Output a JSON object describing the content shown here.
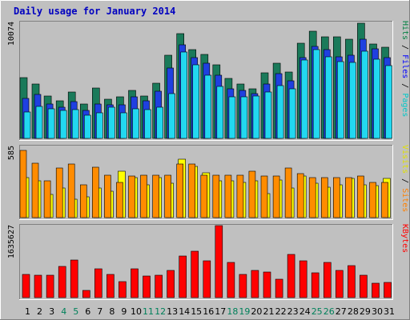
{
  "chart_data": {
    "type": "bar",
    "title": "Daily usage for January 2014",
    "categories": [
      "1",
      "2",
      "3",
      "4",
      "5",
      "6",
      "7",
      "8",
      "9",
      "10",
      "11",
      "12",
      "13",
      "14",
      "15",
      "16",
      "17",
      "18",
      "19",
      "20",
      "21",
      "22",
      "23",
      "24",
      "25",
      "26",
      "27",
      "28",
      "29",
      "30",
      "31"
    ],
    "weekend_days": [
      "4",
      "5",
      "11",
      "12",
      "18",
      "19",
      "25",
      "26"
    ],
    "panels": [
      {
        "id": "pages-files-hits",
        "y_max": 10074,
        "y_max_label": "10074",
        "ylabel_parts": [
          {
            "text": "Pages",
            "color": "#00c8c8"
          },
          {
            "text": " / ",
            "color": "#000000"
          },
          {
            "text": "Files",
            "color": "#0000ff"
          },
          {
            "text": " / ",
            "color": "#000000"
          },
          {
            "text": "Hits",
            "color": "#008040"
          }
        ],
        "series": [
          {
            "name": "Hits",
            "color": "#1a7a5a",
            "values": [
              5300,
              4700,
              3700,
              3300,
              4000,
              3000,
              4400,
              3400,
              3600,
              4200,
              3700,
              4800,
              7200,
              9100,
              7700,
              7300,
              6400,
              5200,
              4700,
              4300,
              5700,
              6500,
              5800,
              8300,
              9300,
              8800,
              8800,
              8600,
              10000,
              8200,
              7900
            ]
          },
          {
            "name": "Files",
            "color": "#1f40e0",
            "values": [
              3500,
              3800,
              3000,
              2700,
              3200,
              2400,
              3000,
              2900,
              2900,
              3600,
              3300,
              4100,
              6100,
              8100,
              7000,
              6500,
              5500,
              4300,
              4200,
              3900,
              4700,
              5600,
              5000,
              7000,
              8000,
              7700,
              7100,
              7200,
              8600,
              7800,
              7000
            ]
          },
          {
            "name": "Pages",
            "color": "#22d8f0",
            "values": [
              2300,
              2800,
              2600,
              2400,
              2500,
              2000,
              2200,
              2700,
              2200,
              2600,
              2500,
              2700,
              3900,
              7500,
              6400,
              5500,
              4500,
              3600,
              3600,
              3700,
              4000,
              4600,
              4300,
              6800,
              7700,
              7100,
              6700,
              6600,
              7600,
              6900,
              6300
            ]
          }
        ]
      },
      {
        "id": "sites-visits",
        "y_max": 585,
        "y_max_label": "585",
        "ylabel_parts": [
          {
            "text": "Sites",
            "color": "#ff8000"
          },
          {
            "text": " / ",
            "color": "#000000"
          },
          {
            "text": "Visits",
            "color": "#e0e000"
          }
        ],
        "series": [
          {
            "name": "Visits",
            "color": "#ffff00",
            "values": [
              330,
              300,
              190,
              240,
              150,
              170,
              240,
              220,
              380,
              330,
              270,
              330,
              280,
              480,
              420,
              370,
              300,
              300,
              290,
              300,
              200,
              310,
              240,
              340,
              280,
              250,
              270,
              320,
              270,
              260,
              320
            ]
          },
          {
            "name": "Sites",
            "color": "#ff8c00",
            "values": [
              555,
              450,
              300,
              410,
              440,
              270,
              415,
              350,
              290,
              340,
              350,
              350,
              350,
              440,
              440,
              350,
              350,
              350,
              350,
              380,
              340,
              340,
              410,
              360,
              330,
              330,
              330,
              330,
              340,
              290,
              290
            ]
          }
        ]
      },
      {
        "id": "kbytes",
        "y_max": 1635627,
        "y_max_label": "1635627",
        "ylabel_parts": [
          {
            "text": "KBytes",
            "color": "#ff0000"
          }
        ],
        "series": [
          {
            "name": "KBytes",
            "color": "#ff0000",
            "values": [
              520000,
              500000,
              500000,
              710000,
              850000,
              160000,
              650000,
              520000,
              360000,
              650000,
              490000,
              510000,
              610000,
              950000,
              1050000,
              830000,
              1635627,
              800000,
              520000,
              620000,
              580000,
              420000,
              990000,
              830000,
              560000,
              800000,
              620000,
              720000,
              500000,
              330000,
              340000
            ]
          }
        ]
      }
    ]
  }
}
